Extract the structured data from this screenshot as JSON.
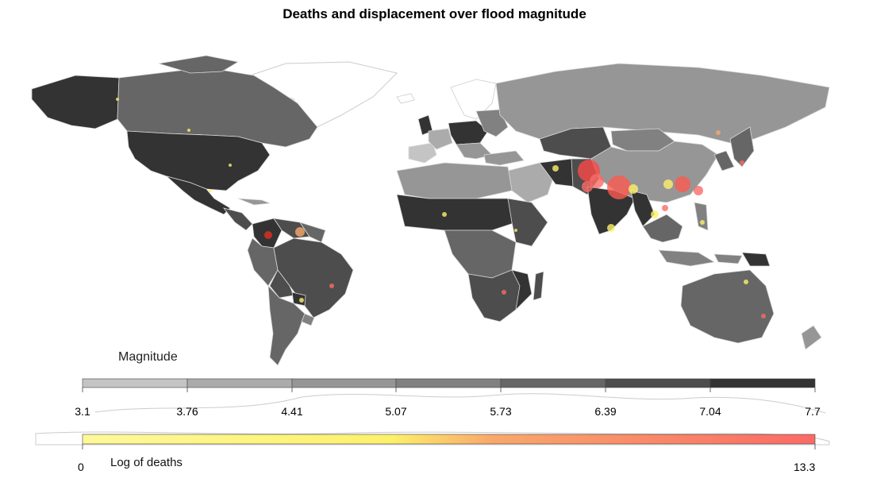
{
  "title": "Deaths and displacement over flood magnitude",
  "magnitude_legend": {
    "label": "Magnitude",
    "ticks": [
      "3.1",
      "3.76",
      "4.41",
      "5.07",
      "5.73",
      "6.39",
      "7.04",
      "7.7"
    ],
    "bin_colors": [
      "#c4c4c4",
      "#ababab",
      "#969696",
      "#818181",
      "#666666",
      "#4d4d4d",
      "#333333"
    ]
  },
  "deaths_legend": {
    "label": "Log of deaths",
    "min": "0",
    "max": "13.3",
    "colors": [
      "#fff89a",
      "#fdf16b",
      "#f9a76a",
      "#fb6a66"
    ]
  },
  "colors": {
    "ocean": "#ffffff",
    "country_border": "#d9d9d9",
    "no_data": "#ffffff",
    "antarctica_outline": "#cccccc"
  }
}
